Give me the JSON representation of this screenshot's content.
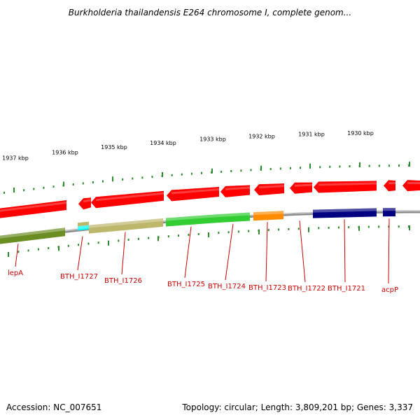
{
  "title": "Burkholderia thailandensis E264 chromosome I, complete genom...",
  "footer": {
    "accession": "Accession: NC_007651",
    "summary": "Topology: circular; Length: 3,809,201 bp; Genes: 3,337"
  },
  "colors": {
    "backbone": "#8a8a8a",
    "cds_forward": "#ff0000",
    "tick": "#2a8a2a",
    "label": "#cc0000"
  },
  "scale_labels": [
    "1937 kbp",
    "1936 kbp",
    "1935 kbp",
    "1934 kbp",
    "1933 kbp",
    "1932 kbp",
    "1931 kbp",
    "1930 kbp"
  ],
  "genes": [
    {
      "label": "lepA",
      "color": "#6b8e23"
    },
    {
      "label": "BTH_I1727",
      "color": "#00ffff"
    },
    {
      "label": "BTH_I1726",
      "color": "#bdb76b"
    },
    {
      "label": "BTH_I1725",
      "color": "#32cd32"
    },
    {
      "label": "BTH_I1724",
      "color": "#32cd32"
    },
    {
      "label": "BTH_I1723",
      "color": "#ff8c00"
    },
    {
      "label": "BTH_I1722",
      "color": "#ff0000"
    },
    {
      "label": "BTH_I1721",
      "color": "#000080"
    },
    {
      "label": "acpP",
      "color": "#000080"
    }
  ]
}
